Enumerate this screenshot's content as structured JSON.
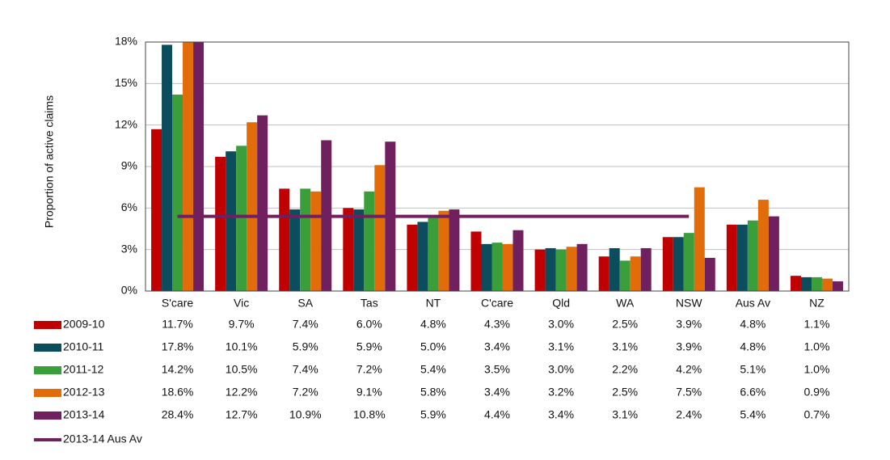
{
  "chart_data": {
    "type": "bar",
    "y_label": "Proportion of active claims",
    "categories": [
      "S'care",
      "Vic",
      "SA",
      "Tas",
      "NT",
      "C'care",
      "Qld",
      "WA",
      "NSW",
      "Aus Av",
      "NZ"
    ],
    "ylim": [
      0,
      18
    ],
    "yticks": [
      {
        "value": 0,
        "label": "0%"
      },
      {
        "value": 3,
        "label": "3%"
      },
      {
        "value": 6,
        "label": "6%"
      },
      {
        "value": 9,
        "label": "9%"
      },
      {
        "value": 12,
        "label": "12%"
      },
      {
        "value": 15,
        "label": "15%"
      },
      {
        "value": 18,
        "label": "18%"
      }
    ],
    "grid": true,
    "series": [
      {
        "name": "2009-10",
        "color": "#c00000",
        "values": [
          11.7,
          9.7,
          7.4,
          6.0,
          4.8,
          4.3,
          3.0,
          2.5,
          3.9,
          4.8,
          1.1
        ],
        "value_labels": [
          "11.7%",
          "9.7%",
          "7.4%",
          "6.0%",
          "4.8%",
          "4.3%",
          "3.0%",
          "2.5%",
          "3.9%",
          "4.8%",
          "1.1%"
        ]
      },
      {
        "name": "2010-11",
        "color": "#0b4d5c",
        "values": [
          17.8,
          10.1,
          5.9,
          5.9,
          5.0,
          3.4,
          3.1,
          3.1,
          3.9,
          4.8,
          1.0
        ],
        "value_labels": [
          "17.8%",
          "10.1%",
          "5.9%",
          "5.9%",
          "5.0%",
          "3.4%",
          "3.1%",
          "3.1%",
          "3.9%",
          "4.8%",
          "1.0%"
        ]
      },
      {
        "name": "2011-12",
        "color": "#3a9e3a",
        "values": [
          14.2,
          10.5,
          7.4,
          7.2,
          5.4,
          3.5,
          3.0,
          2.2,
          4.2,
          5.1,
          1.0
        ],
        "value_labels": [
          "14.2%",
          "10.5%",
          "7.4%",
          "7.2%",
          "5.4%",
          "3.5%",
          "3.0%",
          "2.2%",
          "4.2%",
          "5.1%",
          "1.0%"
        ]
      },
      {
        "name": "2012-13",
        "color": "#e36c0a",
        "values": [
          18.6,
          12.2,
          7.2,
          9.1,
          5.8,
          3.4,
          3.2,
          2.5,
          7.5,
          6.6,
          0.9
        ],
        "value_labels": [
          "18.6%",
          "12.2%",
          "7.2%",
          "9.1%",
          "5.8%",
          "3.4%",
          "3.2%",
          "2.5%",
          "7.5%",
          "6.6%",
          "0.9%"
        ]
      },
      {
        "name": "2013-14",
        "color": "#70205e",
        "values": [
          28.4,
          12.7,
          10.9,
          10.8,
          5.9,
          4.4,
          3.4,
          3.1,
          2.4,
          5.4,
          0.7
        ],
        "value_labels": [
          "28.4%",
          "12.7%",
          "10.9%",
          "10.8%",
          "5.9%",
          "4.4%",
          "3.4%",
          "3.1%",
          "2.4%",
          "5.4%",
          "0.7%"
        ]
      }
    ],
    "line_series": {
      "name": "2013-14 Aus Av",
      "color": "#70205e",
      "values": [
        5.4,
        5.4,
        5.4,
        5.4,
        5.4,
        5.4,
        5.4,
        5.4,
        5.4,
        null,
        null
      ]
    }
  }
}
